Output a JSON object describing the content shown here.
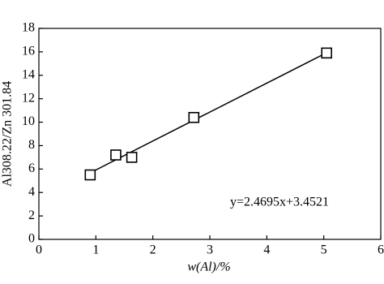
{
  "chart_data": {
    "type": "scatter",
    "x_label": "w(Al)/%",
    "y_label": "Al308.22/Zn 301.84",
    "annotation": "y=2.4695x+3.4521",
    "trendline": {
      "slope": 2.4695,
      "intercept": 3.4521
    },
    "x": [
      0.9,
      1.35,
      1.63,
      2.72,
      5.05
    ],
    "values": [
      5.5,
      7.2,
      7.0,
      10.4,
      15.9
    ],
    "color": "#000000",
    "xlim": [
      0,
      6
    ],
    "xticks": [
      0,
      1,
      2,
      3,
      4,
      5,
      6
    ],
    "ylim": [
      0,
      18
    ],
    "yticks": [
      0,
      2,
      4,
      6,
      8,
      10,
      12,
      14,
      16,
      18
    ]
  }
}
